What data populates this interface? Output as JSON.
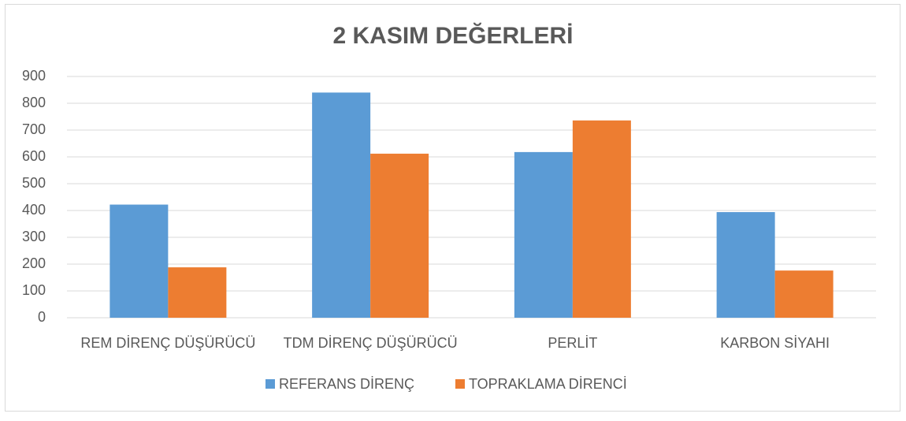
{
  "chart_data": {
    "type": "bar",
    "title": "2 KASIM DEĞERLERİ",
    "categories": [
      "REM DİRENÇ DÜŞÜRÜCÜ",
      "TDM DİRENÇ DÜŞÜRÜCÜ",
      "PERLİT",
      "KARBON SİYAHI"
    ],
    "series": [
      {
        "name": "REFERANS DİRENÇ",
        "color": "#5b9bd5",
        "values": [
          422,
          840,
          618,
          394
        ]
      },
      {
        "name": "TOPRAKLAMA DİRENCİ",
        "color": "#ed7d31",
        "values": [
          188,
          612,
          736,
          176
        ]
      }
    ],
    "ylim": [
      0,
      900
    ],
    "yticks": [
      0,
      100,
      200,
      300,
      400,
      500,
      600,
      700,
      800,
      900
    ],
    "grid": true,
    "legend": "bottom"
  }
}
